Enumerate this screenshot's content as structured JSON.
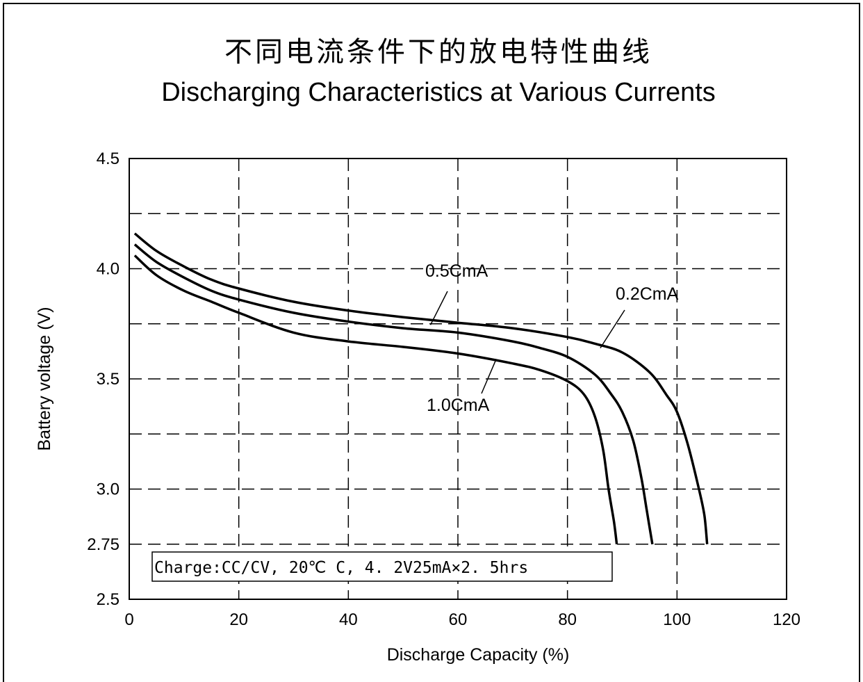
{
  "chart_data": {
    "type": "line",
    "title": "不同电流条件下的放电特性曲线",
    "subtitle": "Discharging Characteristics at Various Currents",
    "xlabel": "Discharge Capacity (%)",
    "ylabel": "Battery voltage (V)",
    "xlim": [
      0,
      120
    ],
    "ylim": [
      2.5,
      4.5
    ],
    "x_ticks": [
      "0",
      "20",
      "40",
      "60",
      "80",
      "100",
      "120"
    ],
    "y_ticks": [
      "2.5",
      "2.75",
      "3.0",
      "3.5",
      "4.0",
      "4.5"
    ],
    "y_tick_values": [
      2.5,
      2.75,
      3.0,
      3.5,
      4.0,
      4.5
    ],
    "grid": true,
    "note": "Charge:CC/CV, 20℃ C, 4. 2V25mA×2. 5hrs",
    "series": [
      {
        "name": "0.2CmA",
        "points": [
          [
            1,
            4.16
          ],
          [
            5,
            4.08
          ],
          [
            10,
            4.01
          ],
          [
            15,
            3.95
          ],
          [
            20,
            3.91
          ],
          [
            30,
            3.85
          ],
          [
            40,
            3.81
          ],
          [
            50,
            3.78
          ],
          [
            60,
            3.755
          ],
          [
            70,
            3.73
          ],
          [
            80,
            3.69
          ],
          [
            85,
            3.66
          ],
          [
            90,
            3.62
          ],
          [
            95,
            3.53
          ],
          [
            98,
            3.43
          ],
          [
            100,
            3.35
          ],
          [
            102,
            3.2
          ],
          [
            104,
            3.0
          ],
          [
            105,
            2.88
          ],
          [
            105.5,
            2.75
          ]
        ]
      },
      {
        "name": "0.5CmA",
        "points": [
          [
            1,
            4.11
          ],
          [
            5,
            4.03
          ],
          [
            10,
            3.96
          ],
          [
            15,
            3.9
          ],
          [
            20,
            3.86
          ],
          [
            30,
            3.8
          ],
          [
            40,
            3.76
          ],
          [
            50,
            3.73
          ],
          [
            60,
            3.71
          ],
          [
            70,
            3.67
          ],
          [
            75,
            3.64
          ],
          [
            80,
            3.6
          ],
          [
            85,
            3.52
          ],
          [
            88,
            3.43
          ],
          [
            90,
            3.35
          ],
          [
            92,
            3.22
          ],
          [
            93.5,
            3.05
          ],
          [
            94.5,
            2.9
          ],
          [
            95.5,
            2.75
          ]
        ]
      },
      {
        "name": "1.0CmA",
        "points": [
          [
            1,
            4.06
          ],
          [
            5,
            3.97
          ],
          [
            10,
            3.9
          ],
          [
            15,
            3.85
          ],
          [
            20,
            3.8
          ],
          [
            30,
            3.71
          ],
          [
            40,
            3.67
          ],
          [
            50,
            3.645
          ],
          [
            60,
            3.615
          ],
          [
            70,
            3.57
          ],
          [
            75,
            3.54
          ],
          [
            80,
            3.49
          ],
          [
            83,
            3.43
          ],
          [
            85,
            3.33
          ],
          [
            86.5,
            3.18
          ],
          [
            87.5,
            3.0
          ],
          [
            88.5,
            2.85
          ],
          [
            89,
            2.75
          ]
        ]
      }
    ],
    "label_pointers": [
      {
        "series": "0.5CmA",
        "point": [
          55,
          3.745
        ]
      },
      {
        "series": "0.2CmA",
        "point": [
          86,
          3.64
        ]
      },
      {
        "series": "1.0CmA",
        "point": [
          67,
          3.59
        ]
      }
    ]
  }
}
